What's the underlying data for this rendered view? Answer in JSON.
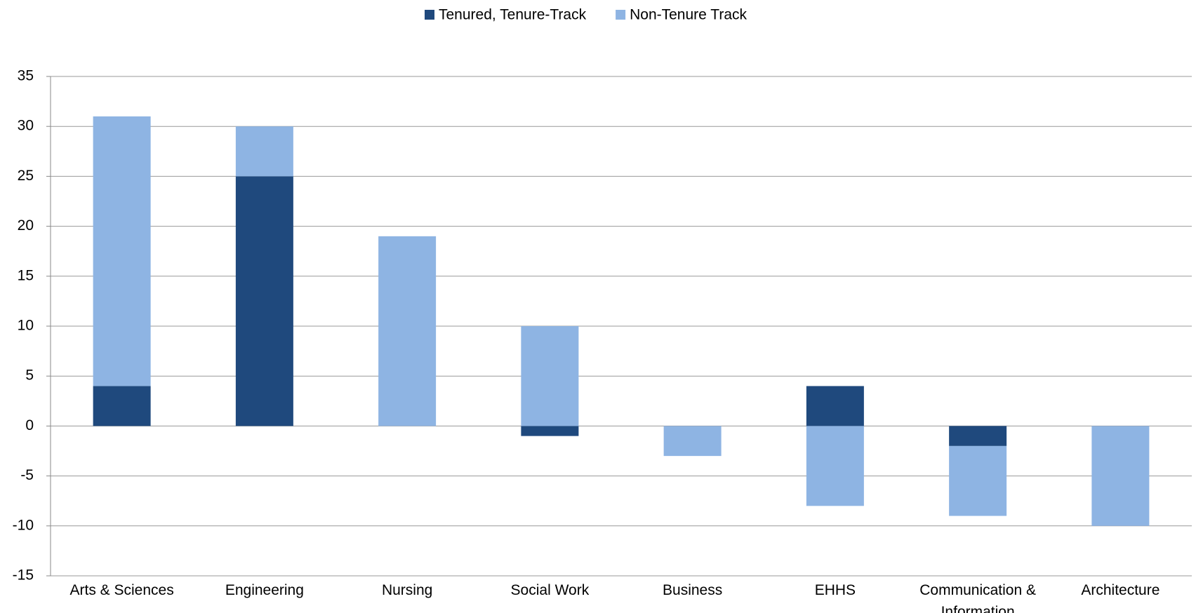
{
  "chart_data": {
    "type": "stacked_bar",
    "categories": [
      "Arts & Sciences",
      "Engineering",
      "Nursing",
      "Social Work",
      "Business",
      "EHHS",
      "Communication & Information",
      "Architecture"
    ],
    "series": [
      {
        "name": "Tenured, Tenure-Track",
        "color": "#1f497d",
        "values": [
          4,
          25,
          0,
          -1,
          0,
          4,
          -2,
          0
        ]
      },
      {
        "name": "Non-Tenure Track",
        "color": "#8eb4e3",
        "values": [
          27,
          5,
          19,
          10,
          -3,
          -8,
          -7,
          -10
        ]
      }
    ],
    "ylim": [
      -15,
      35
    ],
    "yticks": [
      -15,
      -10,
      -5,
      0,
      5,
      10,
      15,
      20,
      25,
      30,
      35
    ],
    "grid": true,
    "legend": "top"
  }
}
